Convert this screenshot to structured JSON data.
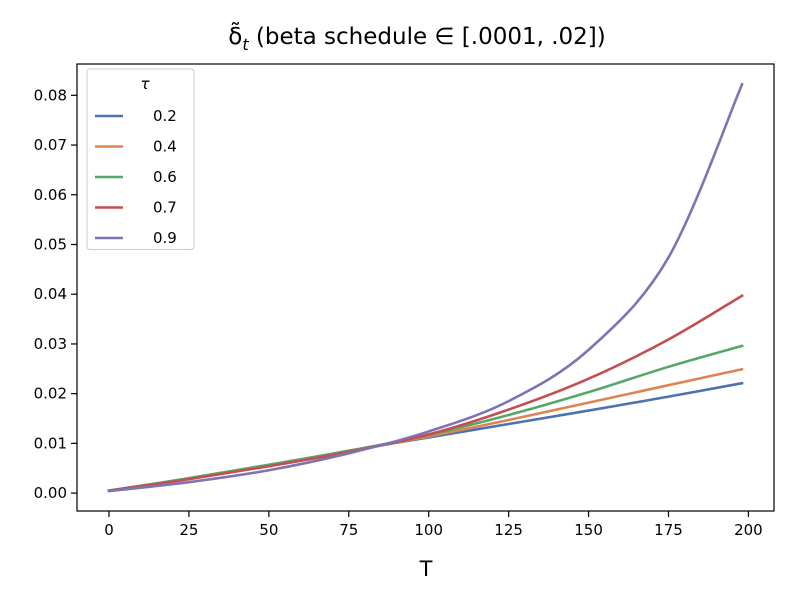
{
  "chart_data": {
    "type": "line",
    "title_prefix": "δ̃",
    "title_sub": "t",
    "title_suffix": " (beta schedule ∈ [.0001, .02])",
    "xlabel": "T",
    "ylabel": "",
    "xlim": [
      -10,
      208
    ],
    "ylim": [
      -0.0036,
      0.0863
    ],
    "xticks": [
      0,
      25,
      50,
      75,
      100,
      125,
      150,
      175,
      200
    ],
    "yticks": [
      0.0,
      0.01,
      0.02,
      0.03,
      0.04,
      0.05,
      0.06,
      0.07,
      0.08
    ],
    "ytick_labels": [
      "0.00",
      "0.01",
      "0.02",
      "0.03",
      "0.04",
      "0.05",
      "0.06",
      "0.07",
      "0.08"
    ],
    "legend": {
      "title": "τ",
      "position": "upper left"
    },
    "x": [
      0,
      25,
      50,
      75,
      100,
      125,
      150,
      175,
      198
    ],
    "series": [
      {
        "name": "0.2",
        "color": "#4c72b0",
        "values": [
          0.0005,
          0.0029,
          0.0056,
          0.0085,
          0.0112,
          0.0139,
          0.0166,
          0.0194,
          0.0221
        ]
      },
      {
        "name": "0.4",
        "color": "#dd8452",
        "values": [
          0.0005,
          0.0029,
          0.0056,
          0.0085,
          0.0114,
          0.0147,
          0.0182,
          0.0217,
          0.0249
        ]
      },
      {
        "name": "0.6",
        "color": "#55a868",
        "values": [
          0.0005,
          0.003,
          0.0057,
          0.0085,
          0.0117,
          0.0157,
          0.0203,
          0.0254,
          0.0296
        ]
      },
      {
        "name": "0.7",
        "color": "#c44e52",
        "values": [
          0.0005,
          0.0028,
          0.0054,
          0.0083,
          0.0118,
          0.0168,
          0.023,
          0.0309,
          0.0397
        ]
      },
      {
        "name": "0.9",
        "color": "#8172b3",
        "values": [
          0.0004,
          0.0022,
          0.0046,
          0.008,
          0.0124,
          0.0185,
          0.0288,
          0.0474,
          0.0822
        ]
      }
    ]
  }
}
